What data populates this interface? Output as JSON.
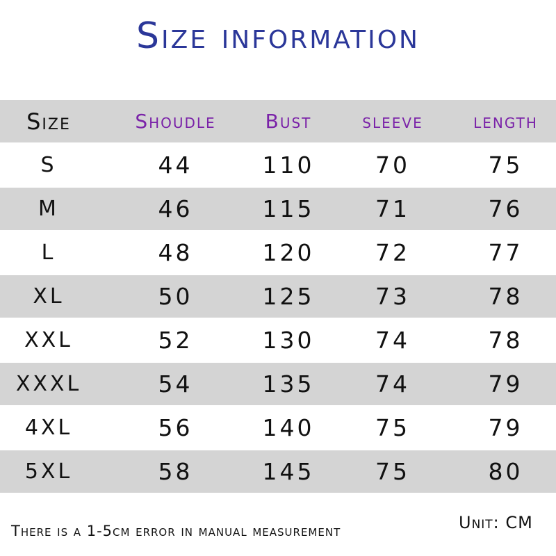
{
  "title": "Size information",
  "table": {
    "headers": [
      "Size",
      "Shoudle",
      "Bust",
      "sleeve",
      "length"
    ],
    "header_colors": {
      "size": "#111111",
      "measurements": "#7a22a8"
    },
    "rows": [
      [
        "S",
        "44",
        "110",
        "70",
        "75"
      ],
      [
        "M",
        "46",
        "115",
        "71",
        "76"
      ],
      [
        "L",
        "48",
        "120",
        "72",
        "77"
      ],
      [
        "XL",
        "50",
        "125",
        "73",
        "78"
      ],
      [
        "XXL",
        "52",
        "130",
        "74",
        "78"
      ],
      [
        "XXXL",
        "54",
        "135",
        "74",
        "79"
      ],
      [
        "4XL",
        "56",
        "140",
        "75",
        "79"
      ],
      [
        "5XL",
        "58",
        "145",
        "75",
        "80"
      ]
    ]
  },
  "footer": {
    "note": "There is a 1-5cm error in manual measurement",
    "unit": "Unit: CM"
  },
  "colors": {
    "title": "#2b3799",
    "stripe": "#d4d4d4"
  }
}
